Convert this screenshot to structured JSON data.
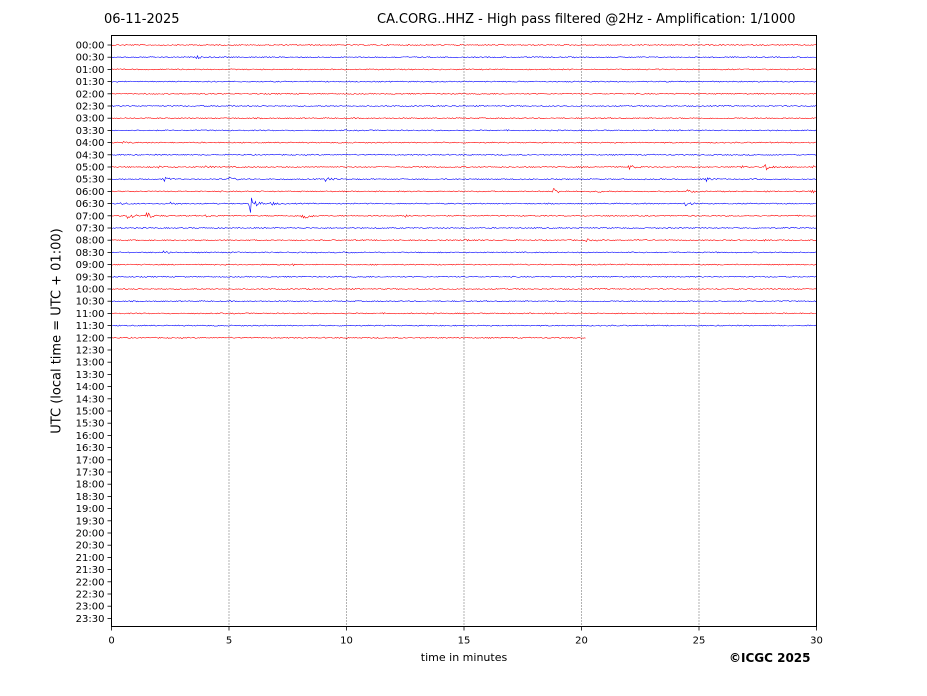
{
  "header": {
    "date": "06-11-2025",
    "title": "CA.CORG..HHZ - High pass filtered @2Hz - Amplification: 1/1000"
  },
  "footer": {
    "copyright": "©ICGC 2025"
  },
  "chart_data": {
    "type": "line",
    "xlabel": "time in minutes",
    "ylabel": "UTC (local time = UTC + 01:00)",
    "xlim": [
      0,
      30
    ],
    "x_ticks": [
      0,
      5,
      10,
      15,
      20,
      25,
      30
    ],
    "grid": "vertical dotted at 5-minute intervals",
    "row_labels": [
      "00:00",
      "00:30",
      "01:00",
      "01:30",
      "02:00",
      "02:30",
      "03:00",
      "03:30",
      "04:00",
      "04:30",
      "05:00",
      "05:30",
      "06:00",
      "06:30",
      "07:00",
      "07:30",
      "08:00",
      "08:30",
      "09:00",
      "09:30",
      "10:00",
      "10:30",
      "11:00",
      "11:30",
      "12:00",
      "12:30",
      "13:00",
      "13:30",
      "14:00",
      "14:30",
      "15:00",
      "15:30",
      "16:00",
      "16:30",
      "17:00",
      "17:30",
      "18:00",
      "18:30",
      "19:00",
      "19:30",
      "20:00",
      "20:30",
      "21:00",
      "21:30",
      "22:00",
      "22:30",
      "23:00",
      "23:30"
    ],
    "trace_colors": [
      "#ff0000",
      "#0000ff"
    ],
    "trace_rows": 25,
    "last_row_end_minute": 20.2,
    "events": [
      {
        "row": 1,
        "minute": 3.6,
        "amplitude": 0.2
      },
      {
        "row": 8,
        "minute": 0.5,
        "amplitude": 0.15
      },
      {
        "row": 10,
        "minute": 2.0,
        "amplitude": 0.2
      },
      {
        "row": 10,
        "minute": 4.0,
        "amplitude": 0.2
      },
      {
        "row": 10,
        "minute": 22.0,
        "amplitude": 0.4
      },
      {
        "row": 10,
        "minute": 26.8,
        "amplitude": 0.25
      },
      {
        "row": 10,
        "minute": 27.8,
        "amplitude": 0.7
      },
      {
        "row": 10,
        "minute": 29.8,
        "amplitude": 0.2
      },
      {
        "row": 11,
        "minute": 2.2,
        "amplitude": 0.4
      },
      {
        "row": 11,
        "minute": 5.0,
        "amplitude": 0.35
      },
      {
        "row": 11,
        "minute": 9.1,
        "amplitude": 0.4
      },
      {
        "row": 11,
        "minute": 25.3,
        "amplitude": 0.35
      },
      {
        "row": 12,
        "minute": 18.8,
        "amplitude": 0.6
      },
      {
        "row": 12,
        "minute": 20.7,
        "amplitude": 0.2
      },
      {
        "row": 12,
        "minute": 24.5,
        "amplitude": 0.25
      },
      {
        "row": 12,
        "minute": 29.8,
        "amplitude": 0.2
      },
      {
        "row": 13,
        "minute": 0.3,
        "amplitude": 0.3
      },
      {
        "row": 13,
        "minute": 2.5,
        "amplitude": 0.25
      },
      {
        "row": 13,
        "minute": 5.9,
        "amplitude": 1.6
      },
      {
        "row": 13,
        "minute": 6.8,
        "amplitude": 0.25
      },
      {
        "row": 13,
        "minute": 24.4,
        "amplitude": 0.4
      },
      {
        "row": 14,
        "minute": 0.7,
        "amplitude": 0.7
      },
      {
        "row": 14,
        "minute": 1.5,
        "amplitude": 0.6
      },
      {
        "row": 14,
        "minute": 4.0,
        "amplitude": 0.2
      },
      {
        "row": 14,
        "minute": 8.1,
        "amplitude": 1.1
      },
      {
        "row": 14,
        "minute": 12.5,
        "amplitude": 0.2
      },
      {
        "row": 16,
        "minute": 15.0,
        "amplitude": 0.25
      },
      {
        "row": 16,
        "minute": 20.2,
        "amplitude": 0.2
      },
      {
        "row": 16,
        "minute": 22.4,
        "amplitude": 0.2
      },
      {
        "row": 16,
        "minute": 27.8,
        "amplitude": 0.25
      },
      {
        "row": 17,
        "minute": 2.2,
        "amplitude": 0.25
      },
      {
        "row": 17,
        "minute": 9.9,
        "amplitude": 0.2
      },
      {
        "row": 18,
        "minute": 7.6,
        "amplitude": 0.15
      }
    ]
  }
}
